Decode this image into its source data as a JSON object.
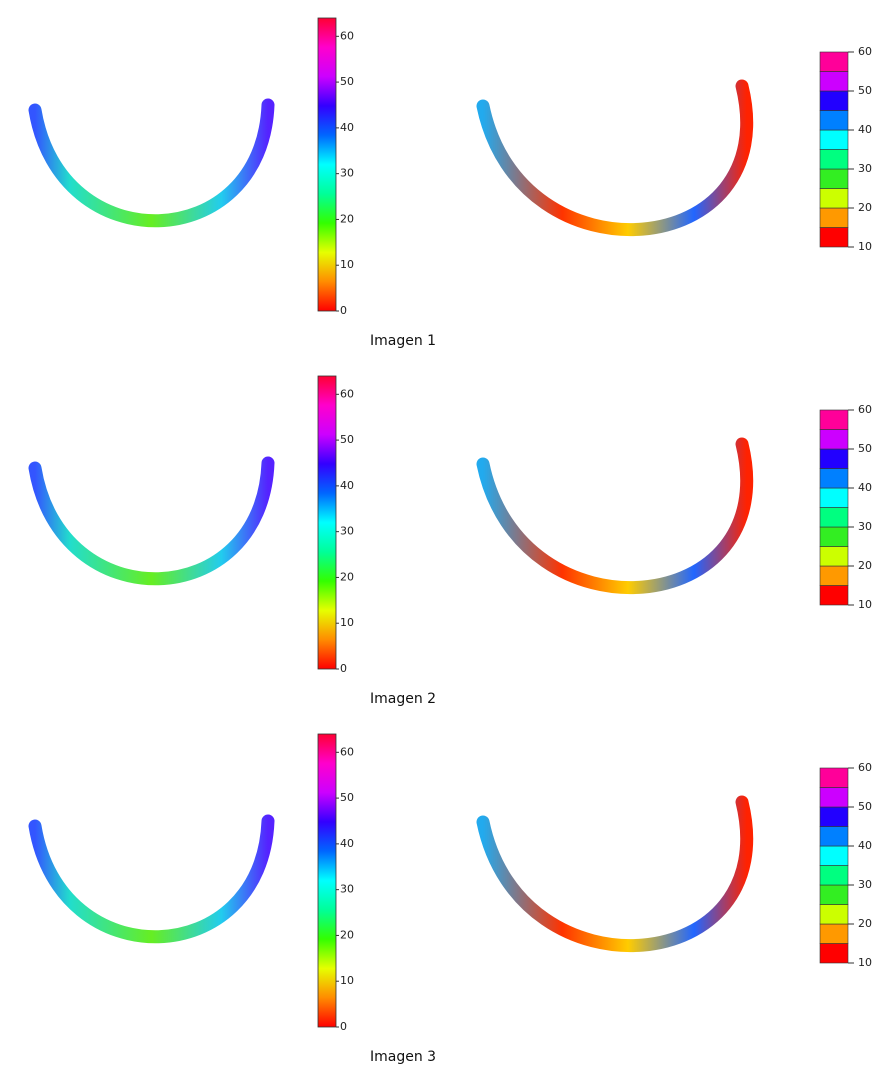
{
  "figure": {
    "continuous_colors": [
      "#ff0000",
      "#ff8c00",
      "#e6ff00",
      "#33ff00",
      "#00ff99",
      "#00ffff",
      "#0066ff",
      "#3300ff",
      "#cc00ff",
      "#ff00cc",
      "#ff0033"
    ],
    "discrete_colors": [
      "#ff0000",
      "#ff9900",
      "#ccff00",
      "#33ee22",
      "#00ff80",
      "#00ffff",
      "#0080ff",
      "#2200ff",
      "#cc00ff",
      "#ff0099"
    ],
    "rows": [
      {
        "caption": "Imagen 1",
        "left_scale": {
          "lim": [
            0,
            64
          ],
          "ticks": [
            0,
            10,
            20,
            30,
            40,
            50,
            60
          ]
        },
        "right_scale": {
          "lim": [
            10,
            60
          ],
          "ticks": [
            10,
            20,
            30,
            40,
            50,
            60
          ]
        }
      },
      {
        "caption": "Imagen 2",
        "left_scale": {
          "lim": [
            0,
            64
          ],
          "ticks": [
            0,
            10,
            20,
            30,
            40,
            50,
            60
          ]
        },
        "right_scale": {
          "lim": [
            10,
            60
          ],
          "ticks": [
            10,
            20,
            30,
            40,
            50,
            60
          ]
        }
      },
      {
        "caption": "Imagen 3",
        "left_scale": {
          "lim": [
            0,
            64
          ],
          "ticks": [
            0,
            10,
            20,
            30,
            40,
            50,
            60
          ]
        },
        "right_scale": {
          "lim": [
            10,
            60
          ],
          "ticks": [
            10,
            20,
            30,
            40,
            50,
            60
          ]
        }
      }
    ]
  }
}
